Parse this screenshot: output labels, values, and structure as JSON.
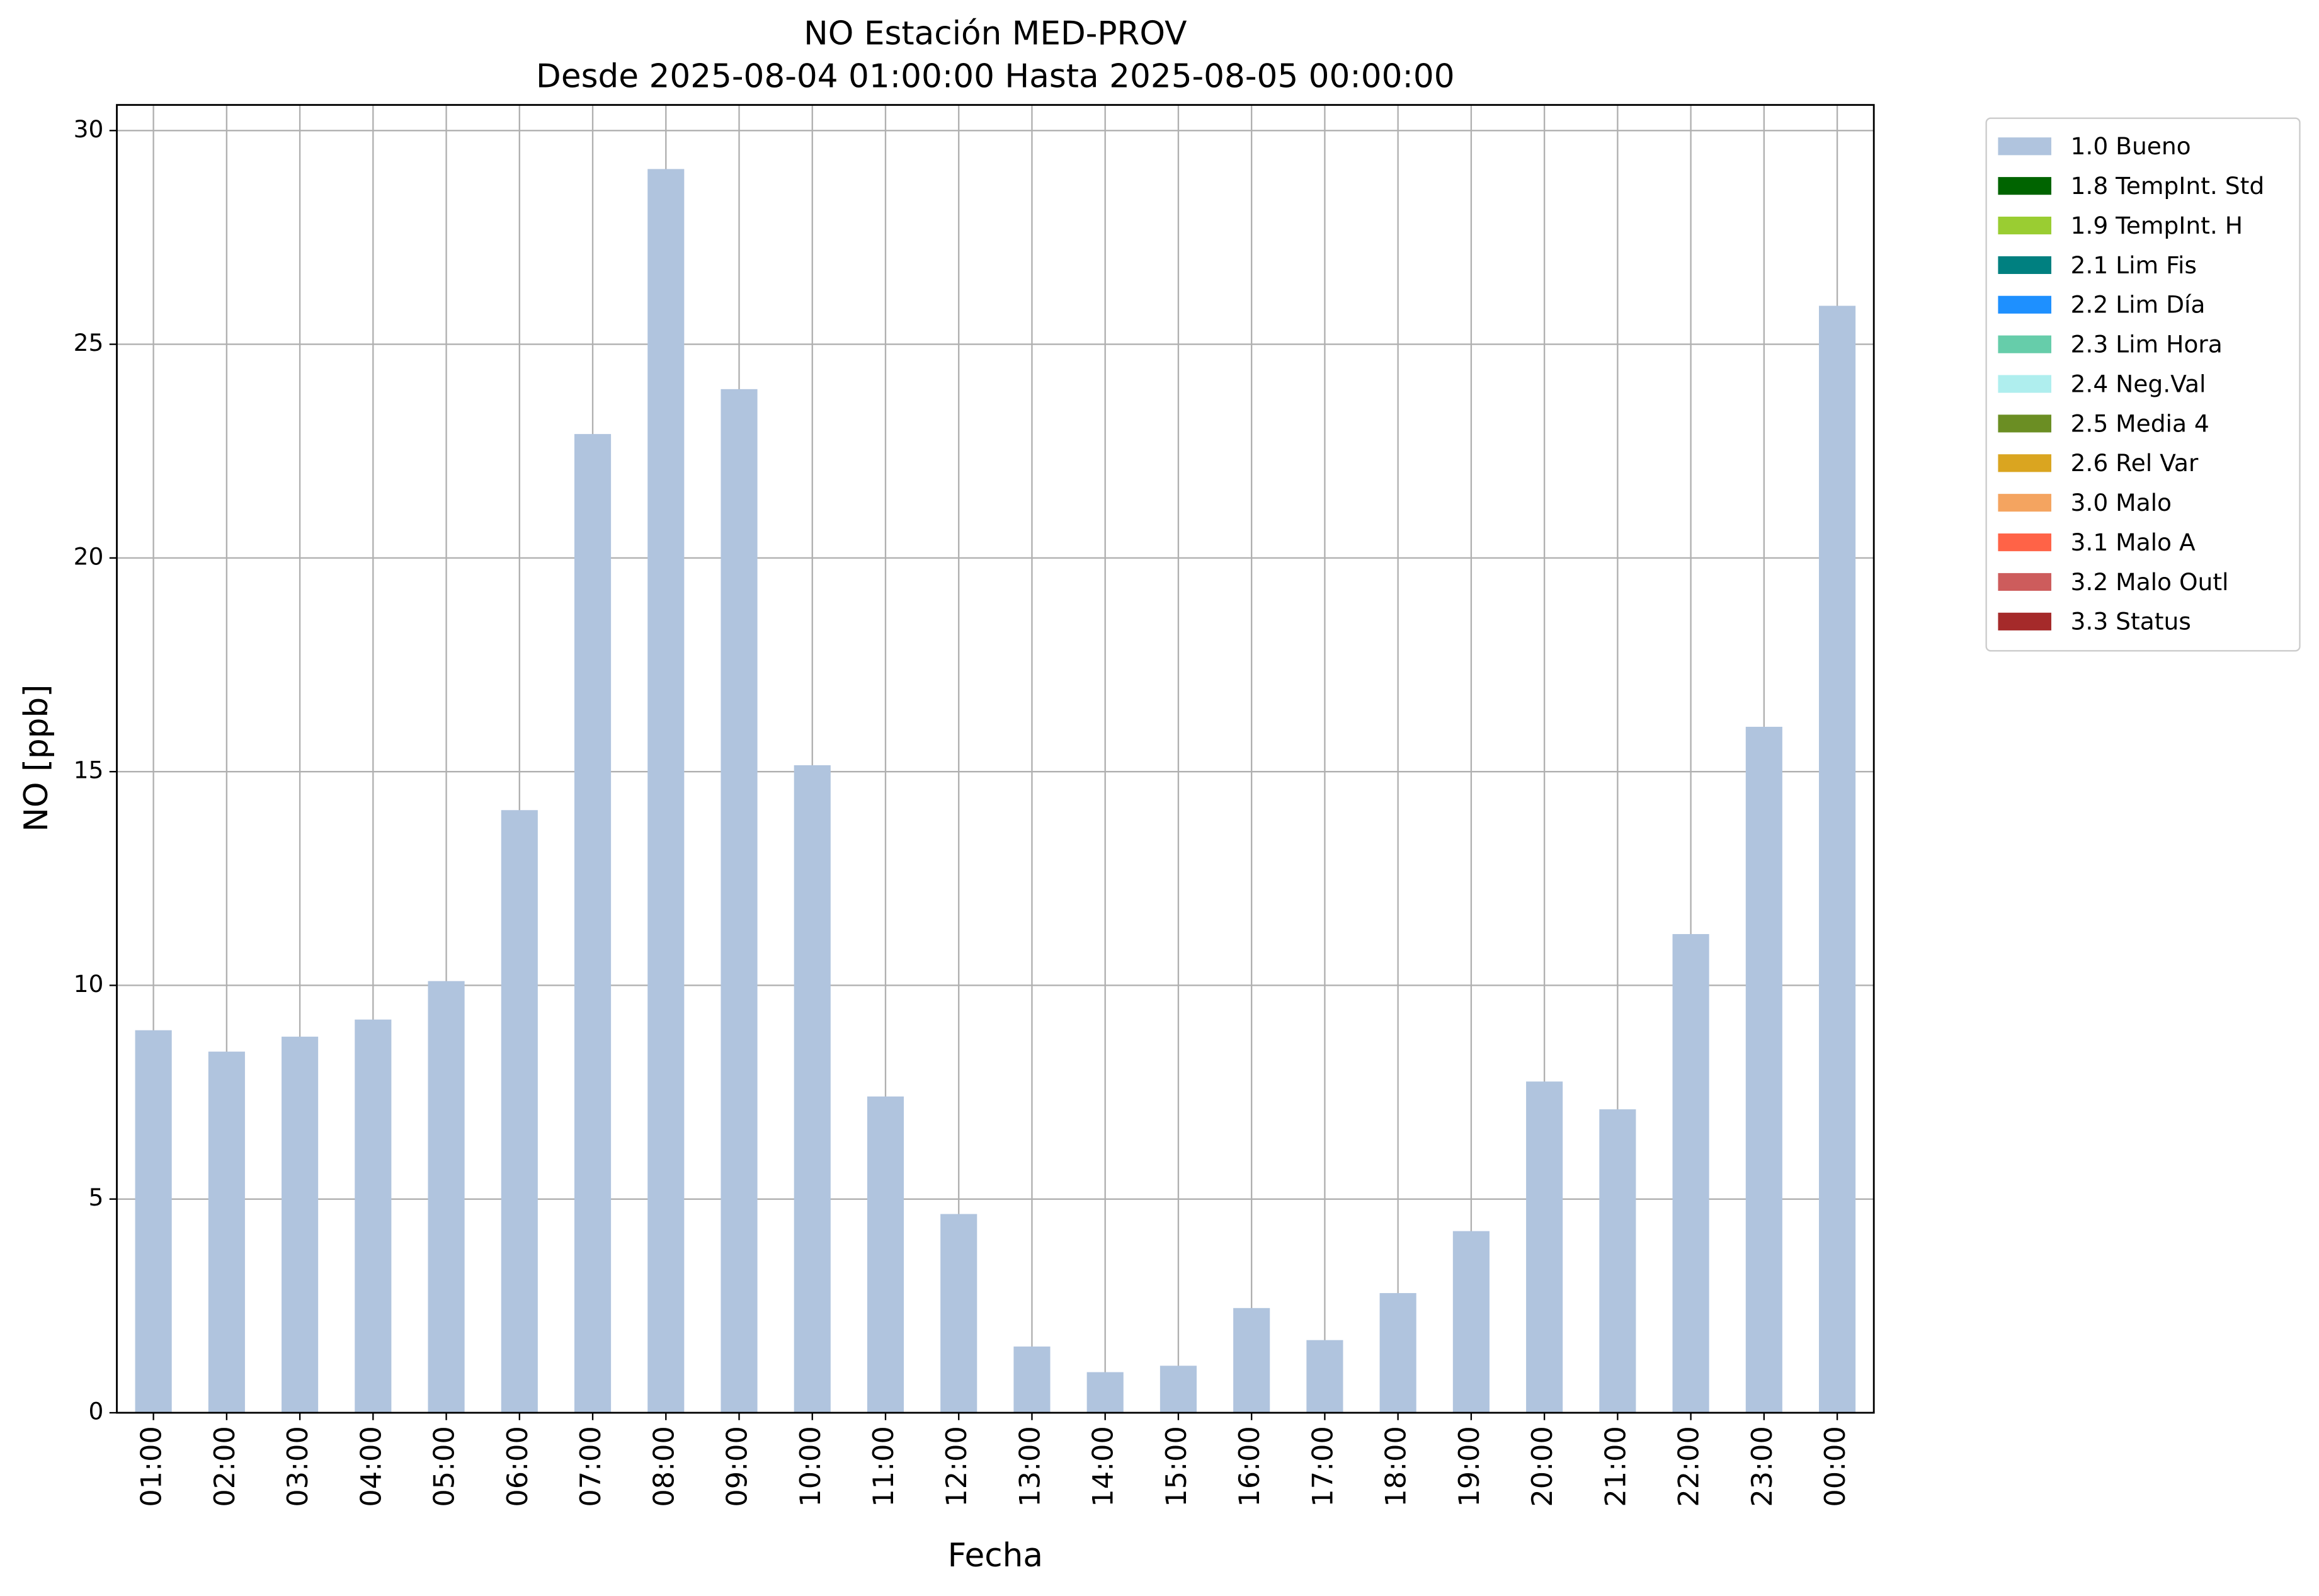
{
  "chart_data": {
    "type": "bar",
    "title": "NO Estación MED-PROV",
    "subtitle": "Desde 2025-08-04 01:00:00 Hasta 2025-08-05 00:00:00",
    "x_label": "Fecha",
    "y_label": "NO [ppb]",
    "categories": [
      "01:00",
      "02:00",
      "03:00",
      "04:00",
      "05:00",
      "06:00",
      "07:00",
      "08:00",
      "09:00",
      "10:00",
      "11:00",
      "12:00",
      "13:00",
      "14:00",
      "15:00",
      "16:00",
      "17:00",
      "18:00",
      "19:00",
      "20:00",
      "21:00",
      "22:00",
      "23:00",
      "00:00"
    ],
    "series": [
      {
        "name": "1.0 Bueno",
        "color": "#b0c4de",
        "values": [
          8.95,
          8.45,
          8.8,
          9.2,
          10.1,
          14.1,
          22.9,
          29.1,
          23.95,
          15.15,
          7.4,
          4.65,
          1.55,
          0.95,
          1.1,
          2.45,
          1.7,
          2.8,
          4.25,
          7.75,
          7.1,
          11.2,
          16.05,
          25.9
        ]
      },
      {
        "name": "1.8 TempInt. Std",
        "color": "#006400"
      },
      {
        "name": "1.9 TempInt. H",
        "color": "#9acd32"
      },
      {
        "name": "2.1 Lim Fis",
        "color": "#008080"
      },
      {
        "name": "2.2 Lim Día",
        "color": "#1e90ff"
      },
      {
        "name": "2.3 Lim Hora",
        "color": "#66cdaa"
      },
      {
        "name": "2.4 Neg.Val",
        "color": "#afeeee"
      },
      {
        "name": "2.5 Media 4",
        "color": "#6b8e23"
      },
      {
        "name": "2.6 Rel Var",
        "color": "#daa520"
      },
      {
        "name": "3.0 Malo",
        "color": "#f4a460"
      },
      {
        "name": "3.1 Malo A",
        "color": "#ff6347"
      },
      {
        "name": "3.2 Malo Outl",
        "color": "#cd5c5c"
      },
      {
        "name": "3.3 Status",
        "color": "#a52a2a"
      }
    ],
    "ylim": [
      0,
      30.6
    ],
    "yticks": [
      0,
      5,
      10,
      15,
      20,
      25,
      30
    ],
    "grid": true,
    "legend": "outside-upper-right"
  }
}
